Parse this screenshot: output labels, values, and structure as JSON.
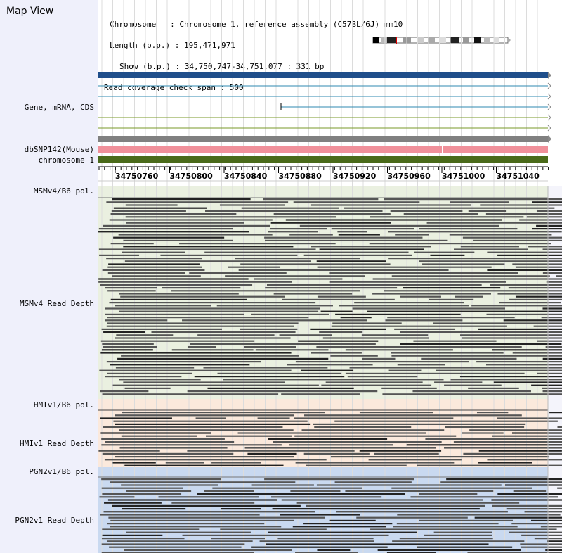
{
  "window": {
    "title": "Map View"
  },
  "header": {
    "chromosome": "Chromosome   : Chromosome 1, reference assembly (C57BL/6J) mm10",
    "length": "Length (b.p.) : 195,471,971",
    "show": "Show (b.p.) : 34,750,747-34,751,077 : 331 bp",
    "coverage": "Read coverage check span : 500"
  },
  "tracks": {
    "gene": "Gene, mRNA, CDS",
    "dbsnp": "dbSNP142(Mouse)",
    "chrom": "chromosome 1",
    "msm_pol": "MSMv4/B6 pol.",
    "msm_depth": "MSMv4 Read Depth",
    "hmi_pol": "HMIv1/B6 pol.",
    "hmi_depth": "HMIv1 Read Depth",
    "pgn_pol": "PGN2v1/B6 pol.",
    "pgn_depth": "PGN2v1 Read Depth"
  },
  "axis": {
    "tick_labels": [
      "34750760",
      "34750800",
      "34750840",
      "34750880",
      "34750920",
      "34750960",
      "34751000",
      "34751040"
    ]
  },
  "colors": {
    "sidebar": "#eff0fb",
    "gene_main": "#1f4e8a",
    "transcript": "#2f8ab0",
    "transcript_alt": "#7a9a2a",
    "gray_bar": "#808080",
    "dbsnp": "#f0909a",
    "chrom_bar": "#4a6a1a",
    "msm_bg": "#eaf0e0",
    "hmi_bg": "#fbe9dc",
    "pgn_bg": "#c9d9f0",
    "read": "#555555"
  }
}
